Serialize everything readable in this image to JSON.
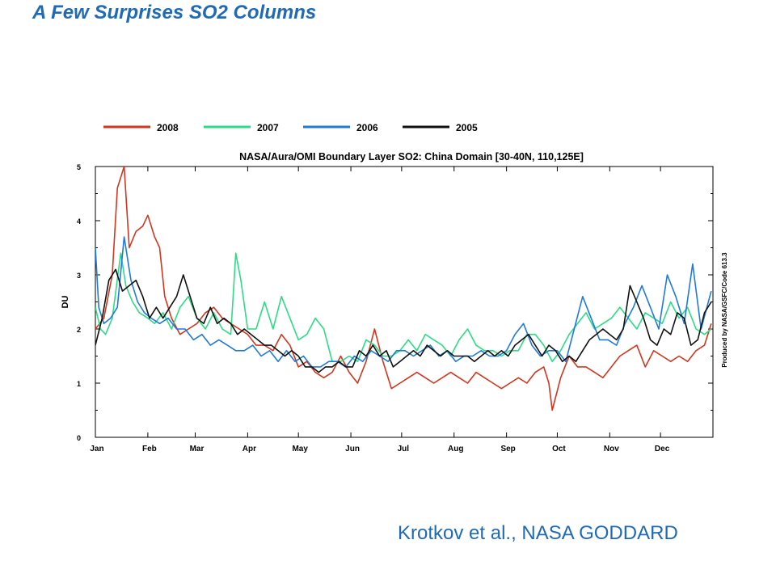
{
  "slide": {
    "title": "A Few Surprises SO2 Columns",
    "credit": "Krotkov et al., NASA GODDARD"
  },
  "chart_data": {
    "type": "line",
    "title": "NASA/Aura/OMI Boundary Layer SO2: China Domain [30-40N, 110,125E]",
    "ylabel": "DU",
    "side_note": "Produced by NASA/GSFC/Code 613.3",
    "xlim": [
      0,
      365
    ],
    "ylim": [
      0,
      5
    ],
    "yticks": [
      0,
      1,
      2,
      3,
      4,
      5
    ],
    "month_labels": [
      "Jan",
      "Feb",
      "Mar",
      "Apr",
      "May",
      "Jun",
      "Jul",
      "Aug",
      "Sep",
      "Oct",
      "Nov",
      "Dec"
    ],
    "month_starts": [
      0,
      31,
      59,
      90,
      120,
      151,
      181,
      212,
      243,
      273,
      304,
      334
    ],
    "legend_position": "top",
    "series": [
      {
        "name": "2008",
        "color": "#d2361e",
        "x": [
          0,
          5,
          10,
          13,
          17,
          20,
          24,
          28,
          31,
          35,
          38,
          41,
          45,
          50,
          55,
          60,
          65,
          70,
          75,
          80,
          85,
          90,
          95,
          100,
          105,
          110,
          115,
          120,
          125,
          130,
          135,
          140,
          145,
          150,
          155,
          160,
          165,
          170,
          175,
          180,
          185,
          190,
          195,
          200,
          205,
          210,
          215,
          220,
          225,
          230,
          235,
          240,
          245,
          250,
          255,
          260,
          265,
          268,
          270,
          275,
          280,
          285,
          290,
          295,
          300,
          305,
          310,
          315,
          320,
          325,
          330,
          335,
          340,
          345,
          350,
          355,
          360,
          364
        ],
        "y": [
          2.0,
          2.2,
          3.0,
          4.6,
          5.0,
          3.5,
          3.8,
          3.9,
          4.1,
          3.7,
          3.5,
          2.6,
          2.2,
          1.9,
          2.0,
          2.1,
          2.3,
          2.4,
          2.2,
          2.1,
          2.0,
          1.9,
          1.7,
          1.7,
          1.6,
          1.9,
          1.7,
          1.3,
          1.4,
          1.2,
          1.1,
          1.2,
          1.5,
          1.2,
          1.0,
          1.4,
          2.0,
          1.4,
          0.9,
          1.0,
          1.1,
          1.2,
          1.1,
          1.0,
          1.1,
          1.2,
          1.1,
          1.0,
          1.2,
          1.1,
          1.0,
          0.9,
          1.0,
          1.1,
          1.0,
          1.2,
          1.3,
          1.0,
          0.5,
          1.1,
          1.5,
          1.3,
          1.3,
          1.2,
          1.1,
          1.3,
          1.5,
          1.6,
          1.7,
          1.3,
          1.6,
          1.5,
          1.4,
          1.5,
          1.4,
          1.6,
          1.7,
          2.1
        ]
      },
      {
        "name": "2007",
        "color": "#2ddc86",
        "x": [
          0,
          3,
          6,
          10,
          15,
          18,
          22,
          26,
          31,
          35,
          40,
          45,
          50,
          55,
          60,
          65,
          70,
          75,
          80,
          83,
          86,
          90,
          95,
          100,
          105,
          110,
          115,
          120,
          125,
          130,
          135,
          140,
          145,
          150,
          155,
          160,
          165,
          170,
          175,
          180,
          185,
          190,
          195,
          200,
          205,
          210,
          215,
          220,
          225,
          230,
          235,
          240,
          245,
          250,
          255,
          260,
          265,
          270,
          275,
          280,
          285,
          290,
          295,
          300,
          305,
          310,
          315,
          320,
          325,
          330,
          335,
          340,
          345,
          350,
          355,
          360,
          364
        ],
        "y": [
          2.4,
          2.0,
          1.9,
          2.2,
          3.4,
          2.8,
          2.5,
          2.3,
          2.2,
          2.1,
          2.3,
          2.0,
          2.4,
          2.6,
          2.2,
          2.0,
          2.3,
          2.0,
          1.9,
          3.4,
          2.9,
          2.0,
          2.0,
          2.5,
          2.0,
          2.6,
          2.2,
          1.8,
          1.9,
          2.2,
          2.0,
          1.4,
          1.4,
          1.5,
          1.4,
          1.8,
          1.7,
          1.5,
          1.5,
          1.6,
          1.8,
          1.6,
          1.9,
          1.8,
          1.7,
          1.5,
          1.8,
          2.0,
          1.7,
          1.6,
          1.6,
          1.5,
          1.6,
          1.6,
          1.9,
          1.9,
          1.7,
          1.4,
          1.6,
          1.9,
          2.1,
          2.3,
          2.0,
          2.1,
          2.2,
          2.4,
          2.2,
          2.0,
          2.3,
          2.2,
          2.1,
          2.5,
          2.2,
          2.4,
          2.0,
          1.9,
          2.0
        ]
      },
      {
        "name": "2006",
        "color": "#1f7bd8",
        "x": [
          0,
          2,
          5,
          9,
          13,
          17,
          21,
          25,
          29,
          33,
          38,
          43,
          48,
          53,
          58,
          63,
          68,
          73,
          78,
          83,
          88,
          93,
          98,
          103,
          108,
          113,
          118,
          123,
          128,
          133,
          138,
          143,
          148,
          153,
          158,
          163,
          168,
          173,
          178,
          183,
          188,
          193,
          198,
          203,
          208,
          213,
          218,
          223,
          228,
          233,
          238,
          243,
          248,
          253,
          258,
          263,
          268,
          273,
          278,
          283,
          288,
          293,
          298,
          303,
          308,
          313,
          318,
          323,
          328,
          333,
          338,
          343,
          348,
          353,
          358,
          364
        ],
        "y": [
          3.5,
          2.4,
          2.1,
          2.2,
          2.4,
          3.7,
          2.9,
          2.5,
          2.3,
          2.2,
          2.1,
          2.2,
          2.0,
          2.0,
          1.8,
          1.9,
          1.7,
          1.8,
          1.7,
          1.6,
          1.6,
          1.7,
          1.5,
          1.6,
          1.4,
          1.6,
          1.4,
          1.5,
          1.3,
          1.3,
          1.4,
          1.4,
          1.3,
          1.5,
          1.4,
          1.6,
          1.5,
          1.4,
          1.6,
          1.6,
          1.5,
          1.6,
          1.7,
          1.5,
          1.6,
          1.4,
          1.5,
          1.5,
          1.6,
          1.5,
          1.5,
          1.6,
          1.9,
          2.1,
          1.7,
          1.5,
          1.6,
          1.6,
          1.4,
          2.0,
          2.6,
          2.2,
          1.8,
          1.8,
          1.7,
          2.1,
          2.4,
          2.8,
          2.4,
          2.0,
          3.0,
          2.6,
          2.1,
          3.2,
          2.0,
          2.7
        ]
      },
      {
        "name": "2005",
        "color": "#111111",
        "x": [
          0,
          4,
          8,
          12,
          16,
          20,
          24,
          28,
          32,
          36,
          40,
          44,
          48,
          52,
          56,
          60,
          64,
          68,
          72,
          76,
          80,
          84,
          88,
          92,
          96,
          100,
          104,
          108,
          112,
          116,
          120,
          124,
          128,
          132,
          136,
          140,
          144,
          148,
          152,
          156,
          160,
          164,
          168,
          172,
          176,
          180,
          184,
          188,
          192,
          196,
          200,
          204,
          208,
          212,
          216,
          220,
          224,
          228,
          232,
          236,
          240,
          244,
          248,
          252,
          256,
          260,
          264,
          268,
          272,
          276,
          280,
          284,
          288,
          292,
          296,
          300,
          304,
          308,
          312,
          316,
          320,
          324,
          328,
          332,
          336,
          340,
          344,
          348,
          352,
          356,
          360,
          364
        ],
        "y": [
          1.7,
          2.2,
          2.9,
          3.1,
          2.7,
          2.8,
          2.9,
          2.6,
          2.2,
          2.4,
          2.2,
          2.4,
          2.6,
          3.0,
          2.6,
          2.2,
          2.1,
          2.4,
          2.1,
          2.2,
          2.1,
          1.9,
          2.0,
          1.9,
          1.8,
          1.7,
          1.7,
          1.6,
          1.5,
          1.6,
          1.5,
          1.3,
          1.3,
          1.2,
          1.3,
          1.3,
          1.4,
          1.3,
          1.3,
          1.6,
          1.5,
          1.7,
          1.5,
          1.6,
          1.3,
          1.4,
          1.5,
          1.6,
          1.5,
          1.7,
          1.6,
          1.5,
          1.6,
          1.5,
          1.5,
          1.5,
          1.4,
          1.5,
          1.6,
          1.5,
          1.6,
          1.5,
          1.7,
          1.8,
          1.9,
          1.7,
          1.5,
          1.7,
          1.6,
          1.4,
          1.5,
          1.4,
          1.6,
          1.8,
          1.9,
          2.0,
          1.9,
          1.8,
          2.0,
          2.8,
          2.5,
          2.2,
          1.8,
          1.7,
          2.0,
          1.9,
          2.3,
          2.2,
          1.7,
          1.8,
          2.3,
          2.5
        ]
      }
    ]
  }
}
